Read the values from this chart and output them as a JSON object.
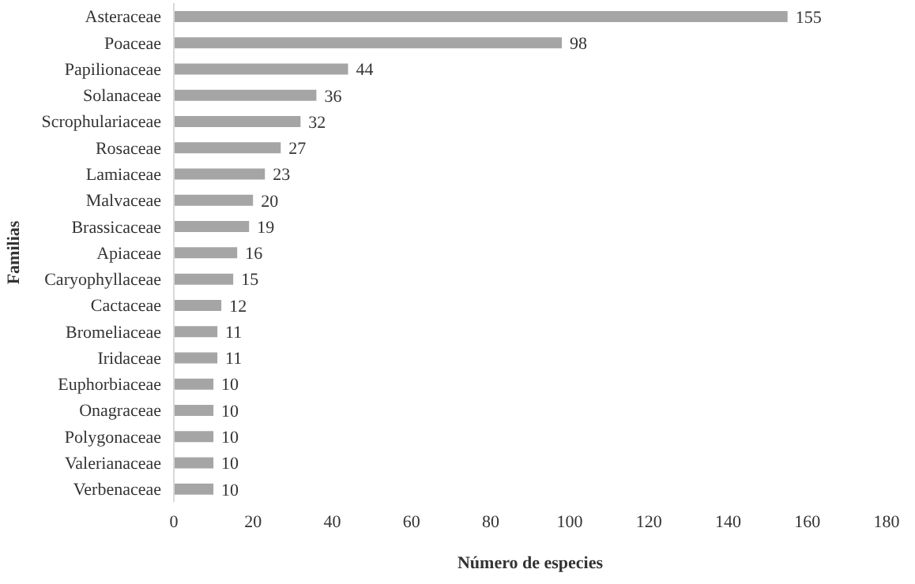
{
  "chart_data": {
    "type": "bar",
    "orientation": "horizontal",
    "xlabel": "Número de especies",
    "ylabel": "Familias",
    "categories": [
      "Asteraceae",
      "Poaceae",
      "Papilionaceae",
      "Solanaceae",
      "Scrophulariaceae",
      "Rosaceae",
      "Lamiaceae",
      "Malvaceae",
      "Brassicaceae",
      "Apiaceae",
      "Caryophyllaceae",
      "Cactaceae",
      "Bromeliaceae",
      "Iridaceae",
      "Euphorbiaceae",
      "Onagraceae",
      "Polygonaceae",
      "Valerianaceae",
      "Verbenaceae"
    ],
    "values": [
      155,
      98,
      44,
      36,
      32,
      27,
      23,
      20,
      19,
      16,
      15,
      12,
      11,
      11,
      10,
      10,
      10,
      10,
      10
    ],
    "color": "#a5a5a5",
    "xlim": [
      0,
      180
    ],
    "xticks": [
      0,
      20,
      40,
      60,
      80,
      100,
      120,
      140,
      160,
      180
    ],
    "data_labels": true
  }
}
